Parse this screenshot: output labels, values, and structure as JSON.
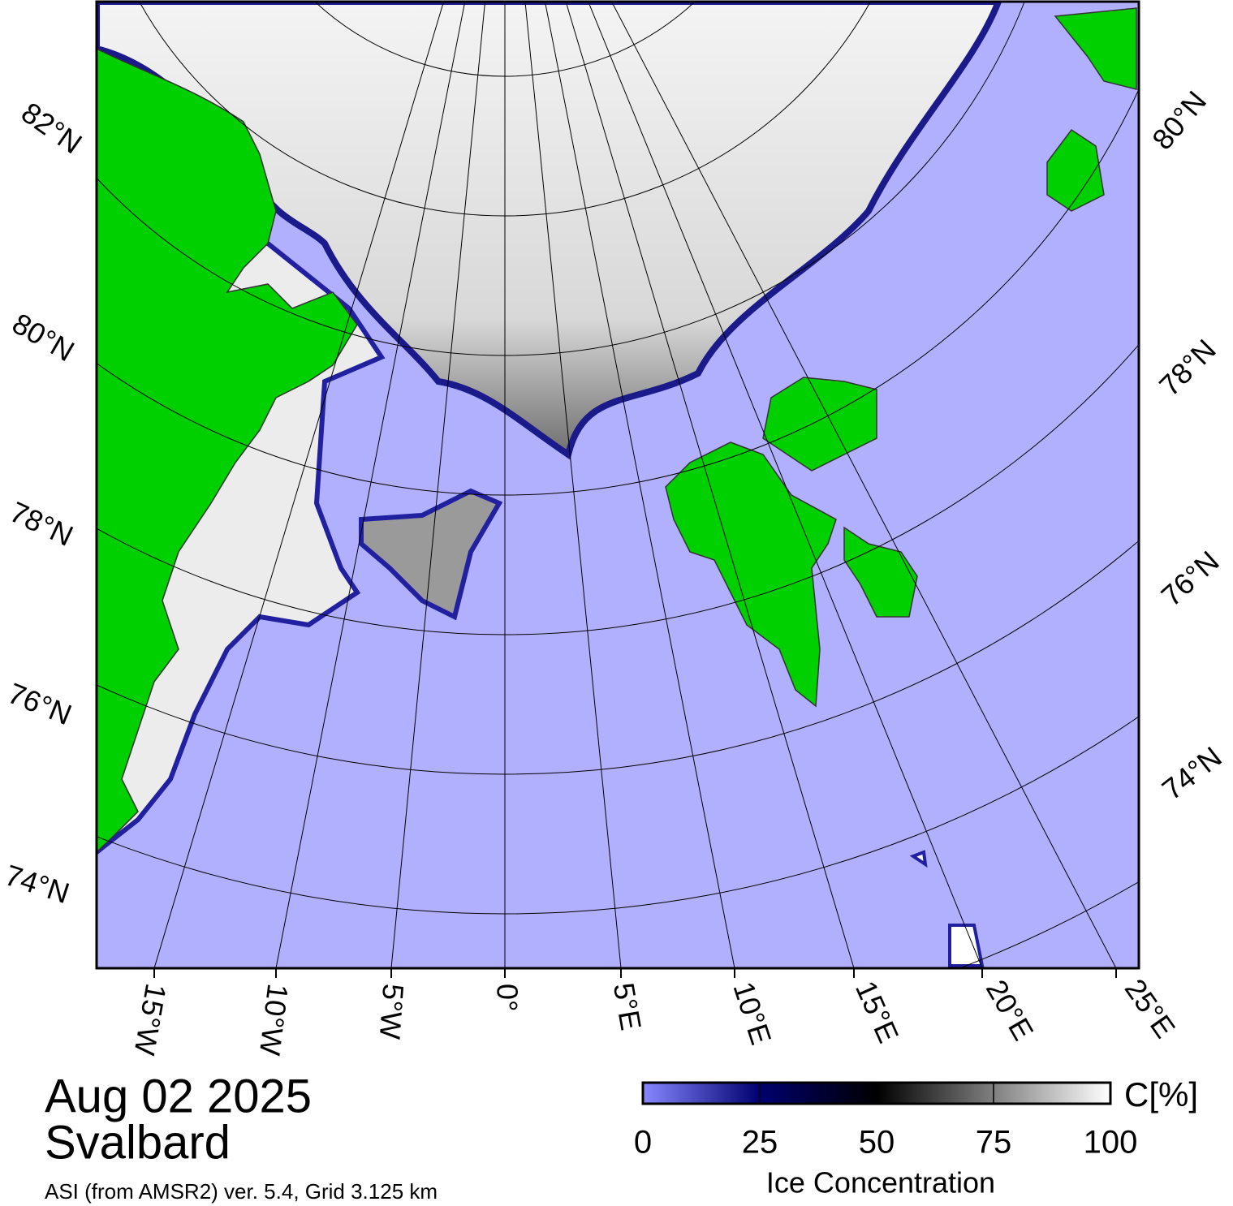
{
  "map": {
    "lat_labels_left": [
      "82°N",
      "80°N",
      "78°N",
      "76°N",
      "74°N"
    ],
    "lat_labels_right": [
      "80°N",
      "78°N",
      "76°N",
      "74°N"
    ],
    "lon_labels": [
      "15°W",
      "10°W",
      "5°W",
      "0°",
      "5°E",
      "10°E",
      "15°E",
      "20°E",
      "25°E"
    ]
  },
  "title": {
    "date": "Aug 02 2025",
    "region": "Svalbard",
    "source": "ASI (from AMSR2) ver. 5.4,  Grid 3.125 km"
  },
  "colorbar": {
    "label": "C[%]",
    "title": "Ice Concentration",
    "range": [
      0,
      100
    ],
    "ticks": [
      0,
      25,
      50,
      75,
      100
    ]
  }
}
